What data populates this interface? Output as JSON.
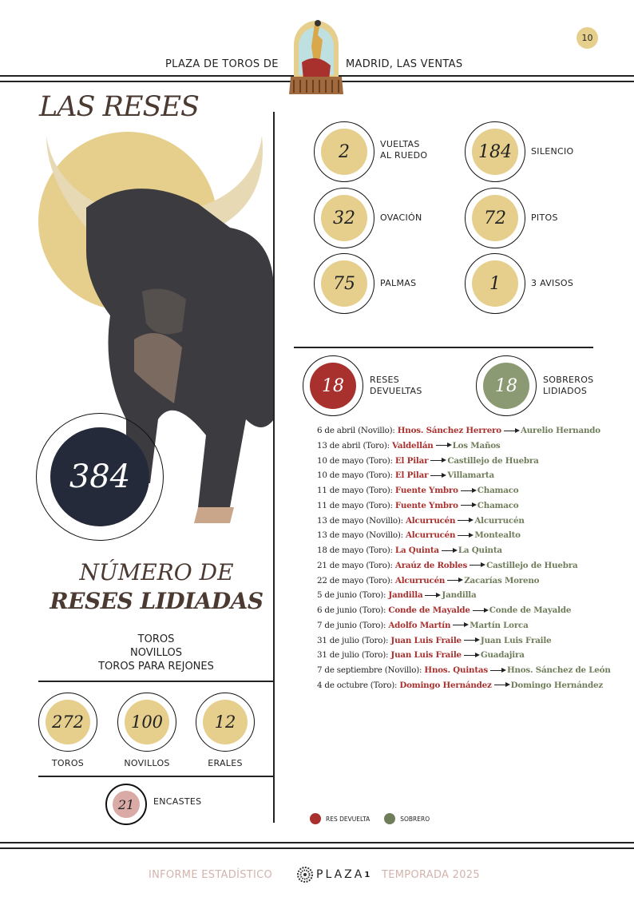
{
  "header": {
    "title_left": "PLAZA DE TOROS DE",
    "title_right": "MADRID, LAS VENTAS",
    "page_number": "10"
  },
  "colors": {
    "gold": "#e6cf8c",
    "navy": "#252a3a",
    "red": "#a8312e",
    "green": "#6f7d5a",
    "pink": "#d9aaa6",
    "brown": "#4a3a32"
  },
  "left": {
    "section_title": "LAS RESES",
    "total": "384",
    "total_title_line1": "NÚMERO DE",
    "total_title_line2": "RESES LIDIADAS",
    "categories": [
      "TOROS",
      "NOVILLOS",
      "TOROS PARA REJONES"
    ],
    "counts": [
      {
        "value": "272",
        "label": "TOROS"
      },
      {
        "value": "100",
        "label": "NOVILLOS"
      },
      {
        "value": "12",
        "label": "ERALES"
      }
    ],
    "encastes": {
      "value": "21",
      "label": "ENCASTES"
    }
  },
  "stats": [
    {
      "value": "2",
      "label1": "VUELTAS",
      "label2": "AL RUEDO"
    },
    {
      "value": "184",
      "label1": "SILENCIO",
      "label2": ""
    },
    {
      "value": "32",
      "label1": "OVACIÓN",
      "label2": ""
    },
    {
      "value": "72",
      "label1": "PITOS",
      "label2": ""
    },
    {
      "value": "75",
      "label1": "PALMAS",
      "label2": ""
    },
    {
      "value": "1",
      "label1": "3 AVISOS",
      "label2": ""
    }
  ],
  "devueltas": {
    "value": "18",
    "label1": "RESES",
    "label2": "DEVUELTAS"
  },
  "sobreros": {
    "value": "18",
    "label1": "SOBREROS",
    "label2": "LIDIADOS"
  },
  "replacements": [
    {
      "date": "6 de abril (Novillo):",
      "returned": "Hnos. Sánchez Herrero",
      "substitute": "Aurelio Hernando"
    },
    {
      "date": "13 de abril (Toro):",
      "returned": "Valdellán",
      "substitute": "Los Maños"
    },
    {
      "date": "10 de mayo (Toro):",
      "returned": "El Pilar",
      "substitute": "Castillejo de Huebra"
    },
    {
      "date": "10 de mayo (Toro):",
      "returned": "El Pilar",
      "substitute": "Villamarta"
    },
    {
      "date": "11 de mayo (Toro):",
      "returned": "Fuente Ymbro",
      "substitute": "Chamaco"
    },
    {
      "date": "11 de mayo (Toro):",
      "returned": "Fuente Ymbro",
      "substitute": "Chamaco"
    },
    {
      "date": "13 de mayo (Novillo):",
      "returned": "Alcurrucén",
      "substitute": "Alcurrucén"
    },
    {
      "date": "13 de mayo (Novillo):",
      "returned": "Alcurrucén",
      "substitute": "Montealto"
    },
    {
      "date": "18 de mayo (Toro):",
      "returned": "La Quinta",
      "substitute": "La Quinta"
    },
    {
      "date": "21 de mayo (Toro):",
      "returned": "Araúz de Robles",
      "substitute": "Castillejo de Huebra"
    },
    {
      "date": "22 de mayo (Toro):",
      "returned": "Alcurrucén",
      "substitute": "Zacarías Moreno"
    },
    {
      "date": "5 de junio (Toro):",
      "returned": "Jandilla",
      "substitute": "Jandilla"
    },
    {
      "date": "6 de junio (Toro):",
      "returned": "Conde de Mayalde",
      "substitute": "Conde de Mayalde"
    },
    {
      "date": "7 de junio (Toro):",
      "returned": "Adolfo Martín",
      "substitute": "Martín Lorca"
    },
    {
      "date": "31 de julio (Toro):",
      "returned": "Juan Luis Fraile",
      "substitute": "Juan Luis Fraile"
    },
    {
      "date": "31 de julio (Toro):",
      "returned": "Juan Luis Fraile",
      "substitute": "Guadajira"
    },
    {
      "date": "7 de septiembre (Novillo):",
      "returned": "Hnos. Quintas",
      "substitute": "Hnos. Sánchez de León"
    },
    {
      "date": "4 de octubre (Toro):",
      "returned": "Domingo Hernández",
      "substitute": "Domingo Hernández"
    }
  ],
  "legend": {
    "returned": "RES DEVUELTA",
    "substitute": "SOBRERO"
  },
  "footer": {
    "left": "INFORME ESTADÍSTICO",
    "brand": "PLAZA",
    "brand_sup": "1",
    "right": "TEMPORADA 2025"
  }
}
